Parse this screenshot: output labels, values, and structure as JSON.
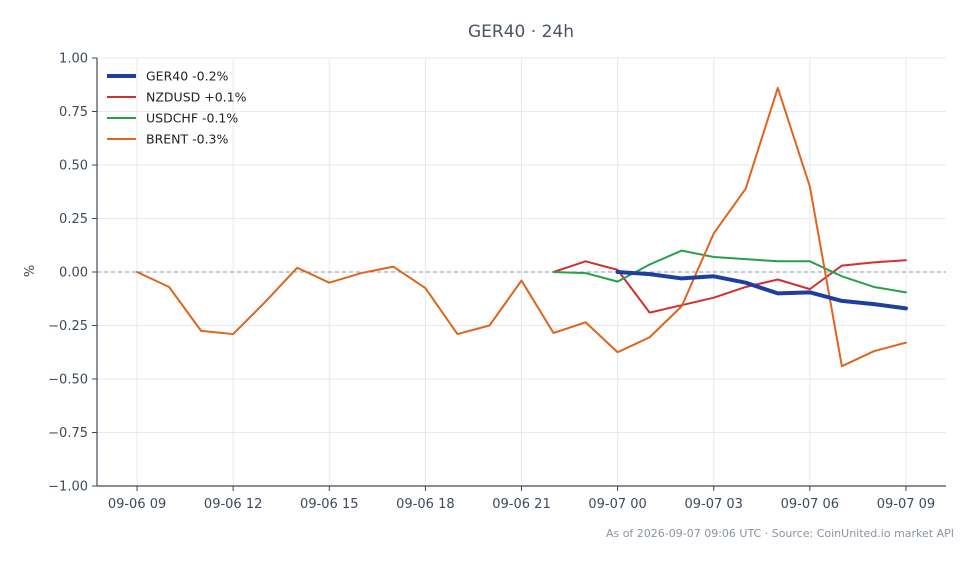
{
  "chart_data": {
    "type": "line",
    "title": "GER40 · 24h",
    "ylabel": "%",
    "xlabel": "",
    "ylim": [
      -1.0,
      1.0
    ],
    "xlim": [
      -1.25,
      25.25
    ],
    "y_ticks": [
      {
        "value": 1.0,
        "label": "1.00"
      },
      {
        "value": 0.75,
        "label": "0.75"
      },
      {
        "value": 0.5,
        "label": "0.50"
      },
      {
        "value": 0.25,
        "label": "0.25"
      },
      {
        "value": 0.0,
        "label": "0.00"
      },
      {
        "value": -0.25,
        "label": "−0.25"
      },
      {
        "value": -0.5,
        "label": "−0.50"
      },
      {
        "value": -0.75,
        "label": "−0.75"
      },
      {
        "value": -1.0,
        "label": "−1.00"
      }
    ],
    "x_ticks": [
      {
        "value": 0,
        "label": "09-06 09"
      },
      {
        "value": 3,
        "label": "09-06 12"
      },
      {
        "value": 6,
        "label": "09-06 15"
      },
      {
        "value": 9,
        "label": "09-06 18"
      },
      {
        "value": 12,
        "label": "09-06 21"
      },
      {
        "value": 15,
        "label": "09-07 00"
      },
      {
        "value": 18,
        "label": "09-07 03"
      },
      {
        "value": 21,
        "label": "09-07 06"
      },
      {
        "value": 24,
        "label": "09-07 09"
      }
    ],
    "grid": true,
    "zero_line": true,
    "legend_position": "top-left",
    "series": [
      {
        "name": "GER40 -0.2%",
        "color": "#1f3fa0",
        "emphasis": true,
        "x": [
          15,
          16,
          17,
          18,
          19,
          20,
          21,
          22,
          23,
          24
        ],
        "y": [
          0.0,
          -0.01,
          -0.03,
          -0.02,
          -0.05,
          -0.1,
          -0.095,
          -0.135,
          -0.15,
          -0.17
        ]
      },
      {
        "name": "NZDUSD +0.1%",
        "color": "#d03030",
        "emphasis": false,
        "x": [
          13,
          14,
          15,
          16,
          17,
          18,
          19,
          20,
          21,
          22,
          23,
          24
        ],
        "y": [
          0.0,
          0.05,
          0.01,
          -0.19,
          -0.155,
          -0.12,
          -0.07,
          -0.035,
          -0.08,
          0.03,
          0.045,
          0.055
        ]
      },
      {
        "name": "USDCHF -0.1%",
        "color": "#27a04a",
        "emphasis": false,
        "x": [
          13,
          14,
          15,
          16,
          17,
          18,
          19,
          20,
          21,
          22,
          23,
          24
        ],
        "y": [
          0.0,
          -0.005,
          -0.045,
          0.035,
          0.1,
          0.07,
          0.06,
          0.05,
          0.05,
          -0.02,
          -0.07,
          -0.095
        ]
      },
      {
        "name": "BRENT -0.3%",
        "color": "#e0641e",
        "emphasis": false,
        "x": [
          0,
          1,
          2,
          3,
          4,
          5,
          6,
          7,
          8,
          9,
          10,
          11,
          12,
          13,
          14,
          15,
          16,
          17,
          18,
          19,
          20,
          21,
          22,
          23,
          24
        ],
        "y": [
          0.0,
          -0.07,
          -0.275,
          -0.29,
          -0.14,
          0.02,
          -0.05,
          -0.005,
          0.025,
          -0.075,
          -0.29,
          -0.25,
          -0.04,
          -0.285,
          -0.235,
          -0.375,
          -0.305,
          -0.16,
          0.18,
          0.39,
          0.86,
          0.4,
          -0.44,
          -0.37,
          -0.33
        ]
      }
    ],
    "footer": "As of 2026-09-07 09:06 UTC · Source: CoinUnited.io market API"
  }
}
